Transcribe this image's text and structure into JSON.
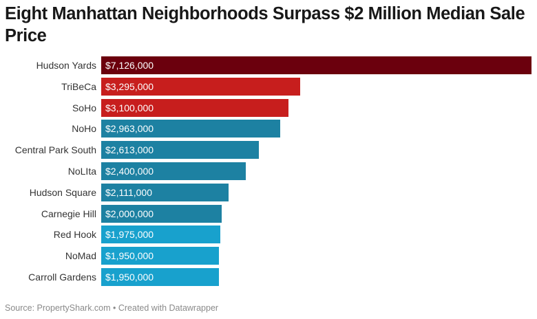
{
  "chart_data": {
    "type": "bar",
    "orientation": "horizontal",
    "title": "Eight Manhattan Neighborhoods Surpass $2 Million Median Sale Price",
    "xlabel": "",
    "ylabel": "",
    "xlim": [
      0,
      7126000
    ],
    "grid": false,
    "categories": [
      "Hudson Yards",
      "TriBeCa",
      "SoHo",
      "NoHo",
      "Central Park South",
      "NoLIta",
      "Hudson Square",
      "Carnegie Hill",
      "Red Hook",
      "NoMad",
      "Carroll Gardens"
    ],
    "values": [
      7126000,
      3295000,
      3100000,
      2963000,
      2613000,
      2400000,
      2111000,
      2000000,
      1975000,
      1950000,
      1950000
    ],
    "value_labels": [
      "$7,126,000",
      "$3,295,000",
      "$3,100,000",
      "$2,963,000",
      "$2,613,000",
      "$2,400,000",
      "$2,111,000",
      "$2,000,000",
      "$1,975,000",
      "$1,950,000",
      "$1,950,000"
    ],
    "colors": [
      "#6b000d",
      "#c71e1d",
      "#c71e1d",
      "#1d81a2",
      "#1d81a2",
      "#1d81a2",
      "#1d81a2",
      "#1d81a2",
      "#18a1cd",
      "#18a1cd",
      "#18a1cd"
    ]
  },
  "footer": {
    "text": "Source: PropertyShark.com • Created with Datawrapper"
  }
}
